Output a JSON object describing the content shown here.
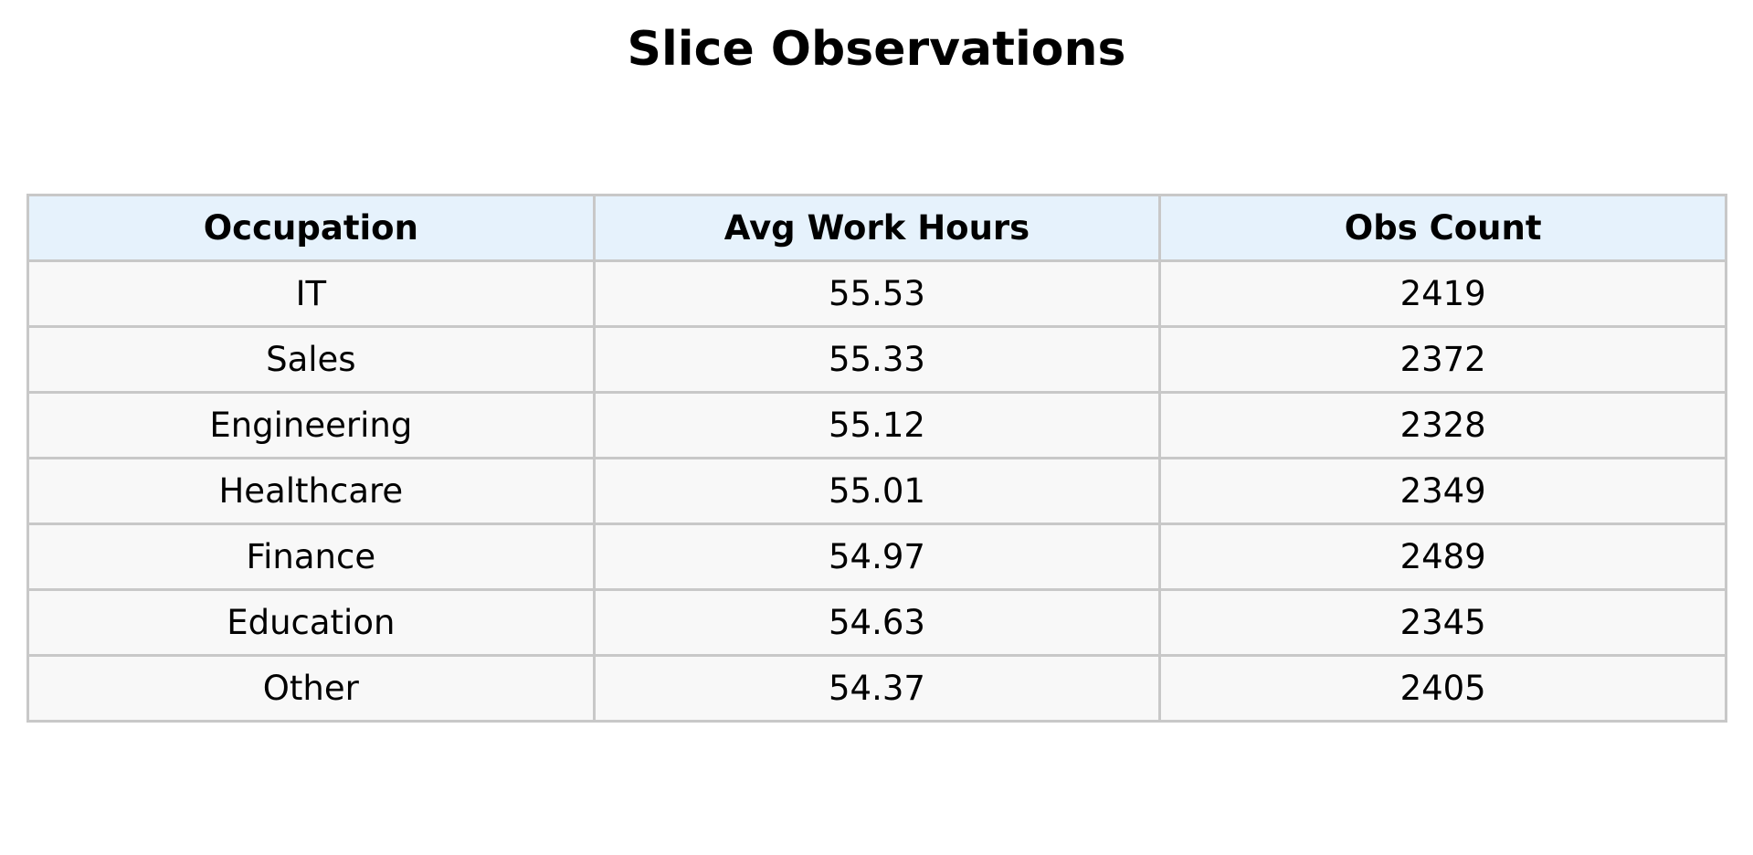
{
  "chart_data": {
    "type": "table",
    "title": "Slice Observations",
    "columns": [
      "Occupation",
      "Avg Work Hours",
      "Obs Count"
    ],
    "rows": [
      [
        "IT",
        "55.53",
        "2419"
      ],
      [
        "Sales",
        "55.33",
        "2372"
      ],
      [
        "Engineering",
        "55.12",
        "2328"
      ],
      [
        "Healthcare",
        "55.01",
        "2349"
      ],
      [
        "Finance",
        "54.97",
        "2489"
      ],
      [
        "Education",
        "54.63",
        "2345"
      ],
      [
        "Other",
        "54.37",
        "2405"
      ]
    ]
  },
  "colors": {
    "header_background": "#e6f2fc",
    "cell_background": "#f8f8f8",
    "border": "#c8c8c8"
  }
}
